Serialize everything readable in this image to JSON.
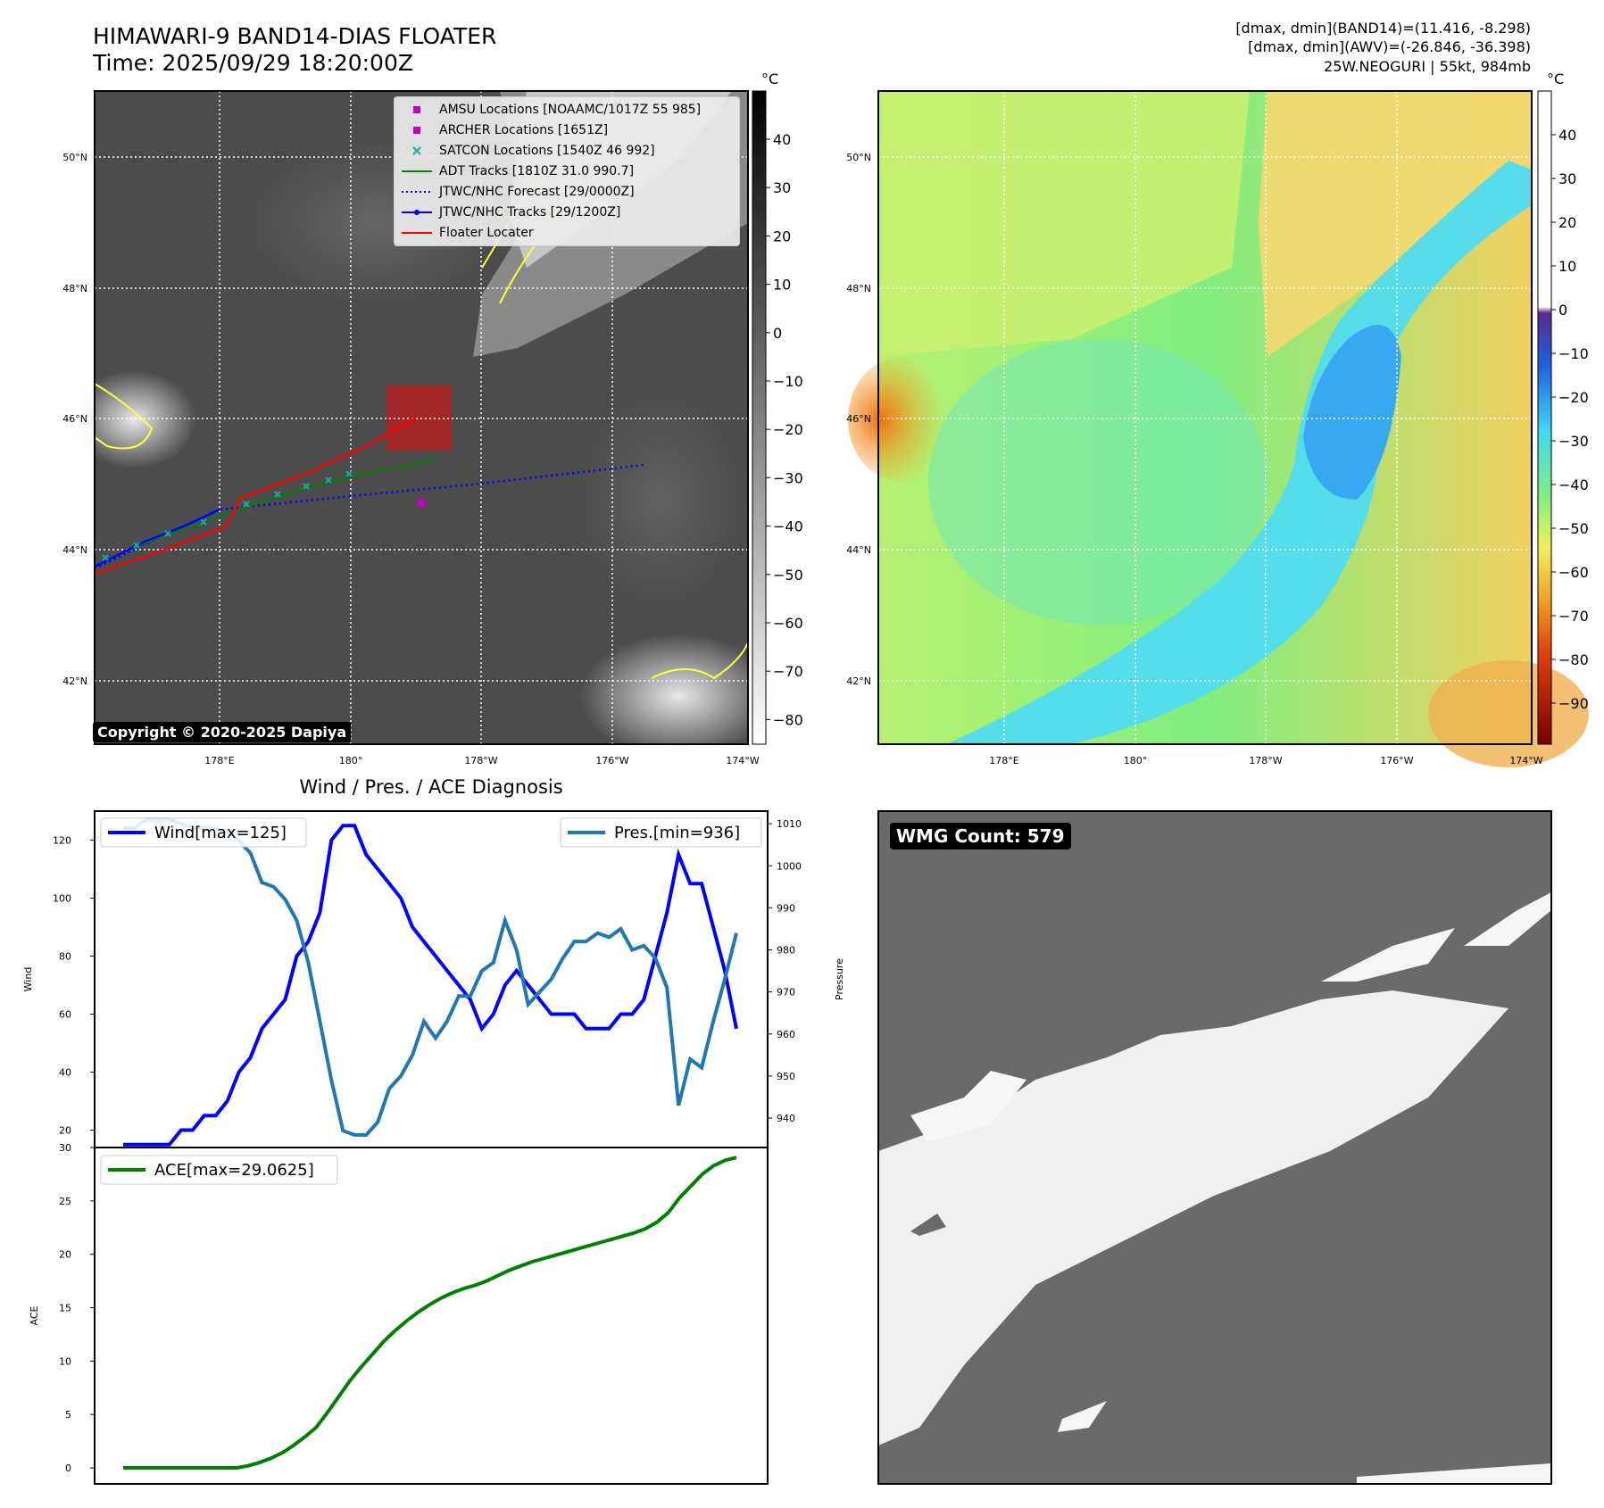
{
  "header": {
    "title_line1": "HIMAWARI-9 BAND14-DIAS FLOATER",
    "title_line2": "Time: 2025/09/29 18:20:00Z",
    "info_line1": "[dmax, dmin](BAND14)=(11.416, -8.298)",
    "info_line2": "[dmax, dmin](AWV)=(-26.846, -36.398)",
    "info_line3": "25W.NEOGURI | 55kt, 984mb"
  },
  "maps": {
    "lat_labels": [
      "50°N",
      "48°N",
      "46°N",
      "44°N",
      "42°N"
    ],
    "lon_labels": [
      "178°E",
      "180°",
      "178°W",
      "176°W",
      "174°W"
    ],
    "copyright": "Copyright © 2020-2025 Dapiya",
    "unit": "°C",
    "ir_colorbar_ticks": [
      "40",
      "30",
      "20",
      "10",
      "0",
      "−10",
      "−20",
      "−30",
      "−40",
      "−50",
      "−60",
      "−70",
      "−80"
    ],
    "wv_colorbar_ticks": [
      "40",
      "30",
      "20",
      "10",
      "0",
      "−10",
      "−20",
      "−30",
      "−40",
      "−50",
      "−60",
      "−70",
      "−80",
      "−90"
    ],
    "legend": [
      {
        "label": "AMSU Locations [NOAAMC/1017Z 55 985]",
        "color": "#c000c0",
        "kind": "square"
      },
      {
        "label": "ARCHER Locations [1651Z]",
        "color": "#c000c0",
        "kind": "square"
      },
      {
        "label": "SATCON Locations [1540Z 46 992]",
        "color": "#17a8a8",
        "kind": "cross"
      },
      {
        "label": "ADT Tracks [1810Z 31.0 990.7]",
        "color": "#008000",
        "kind": "line"
      },
      {
        "label": "JTWC/NHC Forecast [29/0000Z]",
        "color": "#0000ff",
        "kind": "dotted"
      },
      {
        "label": "JTWC/NHC Tracks [29/1200Z]",
        "color": "#0000ff",
        "kind": "line-dot"
      },
      {
        "label": "Floater Locater",
        "color": "#ff0000",
        "kind": "line"
      }
    ]
  },
  "wmg": {
    "label": "WMG Count: 579"
  },
  "chart_data": [
    {
      "type": "line",
      "title": "Wind / Pres. / ACE Diagnosis",
      "ylabel": "Wind",
      "y2label": "Pressure",
      "ylim": [
        14,
        130
      ],
      "y2lim": [
        933,
        1013
      ],
      "yticks": [
        20,
        40,
        60,
        80,
        100,
        120
      ],
      "y2ticks": [
        940,
        950,
        960,
        970,
        980,
        990,
        1000,
        1010
      ],
      "series": [
        {
          "name": "Wind[max=125]",
          "color": "#0000ff",
          "axis": "left",
          "values": [
            15,
            15,
            15,
            15,
            15,
            20,
            20,
            25,
            25,
            30,
            40,
            45,
            55,
            60,
            65,
            80,
            85,
            95,
            120,
            125,
            125,
            115,
            110,
            105,
            100,
            90,
            85,
            80,
            75,
            70,
            65,
            55,
            60,
            70,
            75,
            70,
            65,
            60,
            60,
            60,
            55,
            55,
            55,
            60,
            60,
            65,
            80,
            95,
            115,
            105,
            105,
            90,
            75,
            55
          ]
        },
        {
          "name": "Pres.[min=936]",
          "color": "#1f77b4",
          "axis": "right",
          "values": [
            1009,
            1009,
            1011,
            1011,
            1011,
            1010,
            1009,
            1009,
            1009,
            1008,
            1006,
            1003,
            996,
            995,
            992,
            987,
            977,
            963,
            949,
            937,
            936,
            936,
            939,
            947,
            950,
            955,
            963,
            959,
            963,
            969,
            969,
            975,
            977,
            987,
            980,
            967,
            970,
            973,
            978,
            982,
            982,
            984,
            983,
            985,
            980,
            981,
            978,
            971,
            943,
            954,
            952,
            963,
            973,
            984
          ]
        }
      ]
    },
    {
      "type": "area",
      "ylabel": "ACE",
      "ylim": [
        -1.5,
        30
      ],
      "yticks": [
        0,
        5,
        10,
        15,
        20,
        25,
        30
      ],
      "series": [
        {
          "name": "ACE[max=29.0625]",
          "color": "#008000",
          "values": [
            0,
            0,
            0,
            0,
            0,
            0,
            0,
            0,
            0,
            0,
            0,
            0.2,
            0.5,
            0.9,
            1.4,
            2.1,
            2.9,
            3.8,
            5.2,
            6.7,
            8.2,
            9.5,
            10.7,
            11.9,
            12.9,
            13.8,
            14.6,
            15.3,
            15.9,
            16.4,
            16.8,
            17.1,
            17.5,
            18.0,
            18.5,
            18.9,
            19.3,
            19.6,
            19.9,
            20.2,
            20.5,
            20.8,
            21.1,
            21.4,
            21.7,
            22.0,
            22.4,
            23.0,
            23.9,
            25.3,
            26.4,
            27.5,
            28.3,
            28.8,
            29.0625
          ]
        }
      ]
    }
  ]
}
